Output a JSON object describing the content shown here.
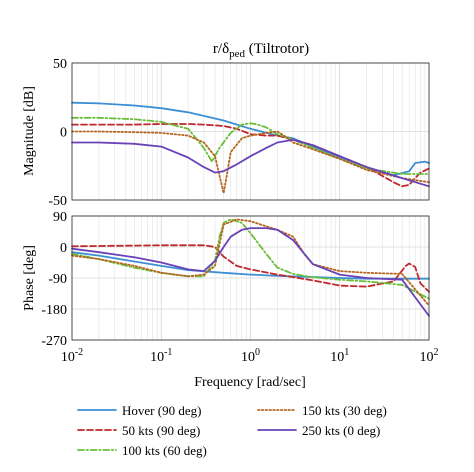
{
  "chart_data": [
    {
      "type": "line",
      "title": "r/δ",
      "title_sub": "ped",
      "title_suffix": " (Tiltrotor)",
      "ylabel": "Magnitude [dB]",
      "xscale": "log",
      "xlim": [
        0.01,
        100
      ],
      "ylim": [
        -50,
        50
      ],
      "yticks": [
        -50,
        0,
        50
      ],
      "grid": true,
      "series": [
        {
          "name": "Hover (90 deg)",
          "x": [
            0.01,
            0.02,
            0.05,
            0.1,
            0.2,
            0.5,
            1,
            2,
            3,
            5,
            10,
            20,
            40,
            60,
            70,
            90,
            100
          ],
          "y": [
            21,
            20.5,
            19,
            17,
            14,
            8,
            2,
            -3,
            -5,
            -11,
            -19,
            -26,
            -32,
            -29,
            -23,
            -22,
            -23
          ]
        },
        {
          "name": "50 kts (90 deg)",
          "x": [
            0.01,
            0.02,
            0.05,
            0.1,
            0.2,
            0.3,
            0.5,
            0.7,
            1,
            1.5,
            2,
            3,
            5,
            10,
            20,
            40,
            50,
            60,
            70,
            80,
            100
          ],
          "y": [
            5,
            5,
            5,
            5.5,
            5.5,
            5,
            4,
            2,
            -2,
            -3,
            -3,
            -6,
            -10,
            -18,
            -26,
            -37,
            -40,
            -39,
            -34,
            -30,
            -27
          ]
        },
        {
          "name": "100 kts (60 deg)",
          "x": [
            0.01,
            0.02,
            0.05,
            0.1,
            0.2,
            0.3,
            0.37,
            0.45,
            0.6,
            0.8,
            1,
            1.2,
            1.5,
            2,
            3,
            5,
            10,
            20,
            50,
            100
          ],
          "y": [
            10,
            10,
            9,
            7,
            2,
            -12,
            -22,
            -12,
            -1,
            5,
            6,
            5,
            3,
            -2,
            -6,
            -12,
            -20,
            -27,
            -31,
            -31
          ]
        },
        {
          "name": "150 kts (30 deg)",
          "x": [
            0.01,
            0.02,
            0.05,
            0.1,
            0.2,
            0.3,
            0.4,
            0.5,
            0.55,
            0.6,
            0.8,
            1,
            1.5,
            2,
            2.5,
            3,
            5,
            10,
            20,
            50,
            100
          ],
          "y": [
            0,
            0,
            -0.5,
            -1,
            -3,
            -8,
            -18,
            -45,
            -30,
            -15,
            -5,
            -3,
            -1,
            0,
            -4,
            -8,
            -13,
            -20,
            -28,
            -34,
            -37
          ]
        },
        {
          "name": "250 kts (0 deg)",
          "x": [
            0.01,
            0.02,
            0.05,
            0.1,
            0.2,
            0.3,
            0.4,
            0.5,
            0.7,
            1,
            1.5,
            2,
            3,
            5,
            10,
            20,
            50,
            100
          ],
          "y": [
            -8,
            -8,
            -9,
            -11,
            -19,
            -26,
            -30,
            -29,
            -24,
            -18,
            -12,
            -8,
            -6,
            -10,
            -18,
            -26,
            -34,
            -40
          ]
        }
      ]
    },
    {
      "type": "line",
      "xlabel": "Frequency [rad/sec]",
      "ylabel": "Phase [deg]",
      "xscale": "log",
      "xlim": [
        0.01,
        100
      ],
      "ylim": [
        -270,
        90
      ],
      "yticks": [
        -270,
        -180,
        -90,
        0,
        90
      ],
      "xticks": [
        {
          "base": "10",
          "exp": "-2",
          "value": 0.01
        },
        {
          "base": "10",
          "exp": "-1",
          "value": 0.1
        },
        {
          "base": "10",
          "exp": "0",
          "value": 1
        },
        {
          "base": "10",
          "exp": "1",
          "value": 10
        },
        {
          "base": "10",
          "exp": "2",
          "value": 100
        }
      ],
      "grid": true,
      "series": [
        {
          "name": "Hover (90 deg)",
          "x": [
            0.01,
            0.02,
            0.05,
            0.1,
            0.2,
            0.5,
            1,
            2,
            5,
            10,
            20,
            50,
            100
          ],
          "y": [
            -15,
            -25,
            -42,
            -55,
            -67,
            -75,
            -80,
            -84,
            -87,
            -90,
            -92,
            -92,
            -92
          ]
        },
        {
          "name": "50 kts (90 deg)",
          "x": [
            0.01,
            0.02,
            0.05,
            0.1,
            0.2,
            0.3,
            0.4,
            0.5,
            0.7,
            1,
            2,
            5,
            10,
            20,
            40,
            55,
            60,
            70,
            80,
            100
          ],
          "y": [
            2,
            3,
            4,
            5,
            5,
            5,
            0,
            -28,
            -55,
            -65,
            -80,
            -97,
            -112,
            -115,
            -100,
            -55,
            -48,
            -58,
            -105,
            -130
          ]
        },
        {
          "name": "100 kts (60 deg)",
          "x": [
            0.01,
            0.02,
            0.05,
            0.1,
            0.2,
            0.3,
            0.4,
            0.45,
            0.5,
            0.6,
            0.8,
            1,
            1.5,
            2,
            3,
            5,
            10,
            20,
            50,
            100
          ],
          "y": [
            -20,
            -35,
            -60,
            -75,
            -85,
            -85,
            -40,
            30,
            70,
            80,
            70,
            40,
            -20,
            -60,
            -78,
            -88,
            -95,
            -100,
            -110,
            -150
          ]
        },
        {
          "name": "150 kts (30 deg)",
          "x": [
            0.01,
            0.02,
            0.05,
            0.1,
            0.2,
            0.3,
            0.4,
            0.5,
            0.7,
            1,
            1.5,
            2,
            3,
            4,
            5,
            10,
            20,
            50,
            100
          ],
          "y": [
            -25,
            -35,
            -55,
            -75,
            -85,
            -80,
            -55,
            65,
            80,
            75,
            60,
            50,
            30,
            -20,
            -50,
            -70,
            -75,
            -78,
            -170
          ]
        },
        {
          "name": "250 kts (0 deg)",
          "x": [
            0.01,
            0.02,
            0.05,
            0.1,
            0.2,
            0.3,
            0.4,
            0.5,
            0.6,
            0.8,
            1,
            1.5,
            2,
            3,
            5,
            10,
            20,
            50,
            100
          ],
          "y": [
            -5,
            -15,
            -30,
            -45,
            -65,
            -70,
            -40,
            0,
            30,
            50,
            55,
            55,
            50,
            20,
            -50,
            -80,
            -90,
            -95,
            -200
          ]
        }
      ]
    }
  ],
  "legend": [
    {
      "label": "Hover (90 deg)",
      "color": "#3d8fd5",
      "dash": "solid"
    },
    {
      "label": "150 kts (30 deg)",
      "color": "#b5651d",
      "dash": "dotted"
    },
    {
      "label": "50 kts (90 deg)",
      "color": "#c0282d",
      "dash": "dashed"
    },
    {
      "label": "250 kts (0 deg)",
      "color": "#6a42b8",
      "dash": "solid"
    },
    {
      "label": "100 kts (60 deg)",
      "color": "#6abe3a",
      "dash": "dashdot"
    }
  ],
  "styles": {
    "Hover (90 deg)": {
      "color": "#3d8fd5",
      "dash": "solid"
    },
    "50 kts (90 deg)": {
      "color": "#c0282d",
      "dash": "dashed"
    },
    "100 kts (60 deg)": {
      "color": "#6abe3a",
      "dash": "dashdot"
    },
    "150 kts (30 deg)": {
      "color": "#b5651d",
      "dash": "dotted"
    },
    "250 kts (0 deg)": {
      "color": "#6a42b8",
      "dash": "solid"
    }
  }
}
